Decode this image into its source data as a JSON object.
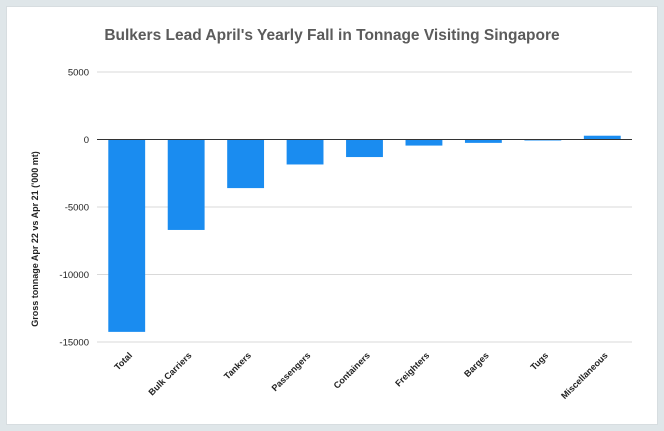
{
  "chart_data": {
    "type": "bar",
    "title": "Bulkers Lead April's Yearly Fall in Tonnage Visiting Singapore",
    "ylabel": "Gross tonnage Apr 22 vs Apr 21 ('000 mt)",
    "xlabel": "",
    "categories": [
      "Total",
      "Bulk Carriers",
      "Tankers",
      "Passengers",
      "Containers",
      "Freighters",
      "Barges",
      "Tugs",
      "Miscellaneous"
    ],
    "values": [
      -14250,
      -6700,
      -3600,
      -1850,
      -1300,
      -450,
      -250,
      -50,
      280
    ],
    "ylim": [
      -15000,
      5000
    ],
    "yticks": [
      5000,
      0,
      -5000,
      -10000,
      -15000
    ],
    "bar_color": "#1a8cf0",
    "grid": true,
    "legend": "none"
  }
}
